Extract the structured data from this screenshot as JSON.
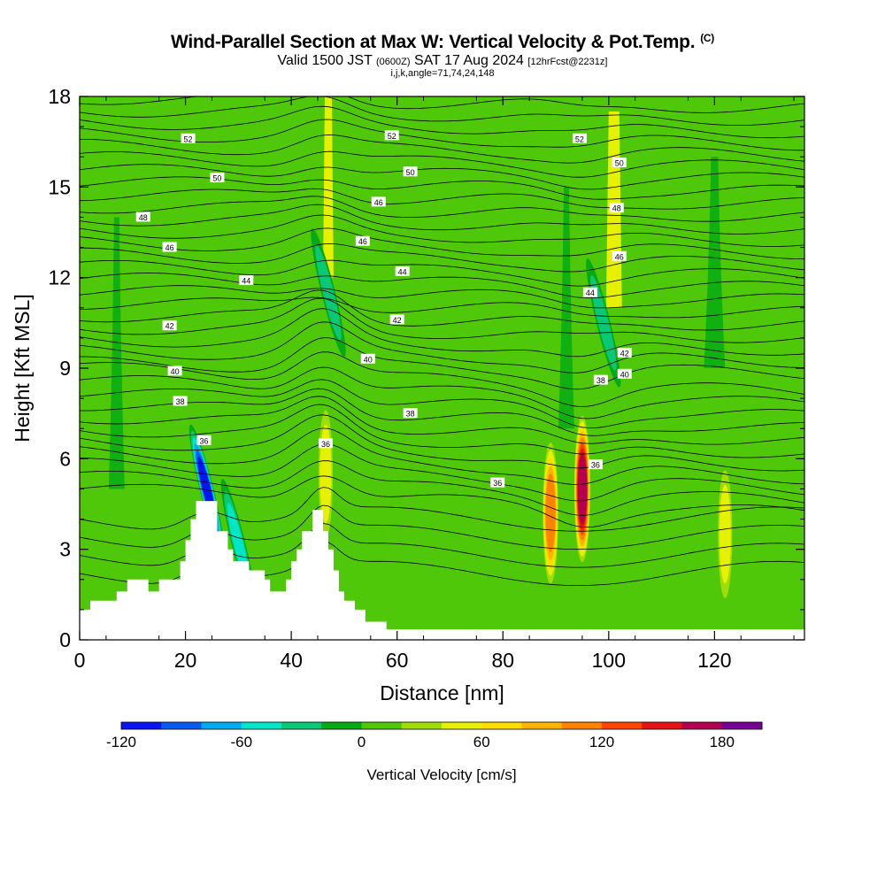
{
  "title": {
    "main": "Wind-Parallel Section at Max W: Vertical Velocity & Pot.Temp.",
    "copyright": "(C)",
    "valid_prefix": "Valid 1500 JST",
    "valid_utc": "(0600Z)",
    "valid_date": "SAT 17 Aug 2024",
    "forecast": "[12hrFcst@2231z]",
    "params": "i,j,k,angle=71,74,24,148"
  },
  "chart_data": {
    "type": "heatmap",
    "xlabel": "Distance [nm]",
    "ylabel": "Height [Kft MSL]",
    "xlim": [
      0,
      137
    ],
    "ylim": [
      0,
      18
    ],
    "x_ticks": [
      "0",
      "20",
      "40",
      "60",
      "80",
      "100",
      "120"
    ],
    "y_ticks": [
      "0",
      "3",
      "6",
      "9",
      "12",
      "15",
      "18"
    ],
    "background_w": 0,
    "colorbar": {
      "label": "Vertical Velocity [cm/s]",
      "ticks": [
        "-120",
        "-60",
        "0",
        "60",
        "120",
        "180"
      ],
      "range": [
        -120,
        200
      ],
      "colors": [
        "#0a14f0",
        "#0a5af0",
        "#00aaf0",
        "#00e6c8",
        "#0ac878",
        "#05aa14",
        "#50c80a",
        "#a0dc0a",
        "#e6f000",
        "#ffdc00",
        "#ffb400",
        "#ff8200",
        "#ff4600",
        "#e61414",
        "#b40050",
        "#780096"
      ]
    },
    "terrain_profile": [
      [
        0,
        1
      ],
      [
        2,
        1
      ],
      [
        2,
        1.3
      ],
      [
        7,
        1.3
      ],
      [
        7,
        1.6
      ],
      [
        9,
        1.6
      ],
      [
        9,
        2
      ],
      [
        13,
        2
      ],
      [
        13,
        1.6
      ],
      [
        15,
        1.6
      ],
      [
        15,
        2
      ],
      [
        19,
        2
      ],
      [
        19,
        2.6
      ],
      [
        20,
        2.6
      ],
      [
        20,
        3.3
      ],
      [
        21,
        3.3
      ],
      [
        21,
        4
      ],
      [
        22,
        4
      ],
      [
        22,
        4.6
      ],
      [
        26,
        4.6
      ],
      [
        26,
        3.6
      ],
      [
        28,
        3.6
      ],
      [
        28,
        3
      ],
      [
        29,
        3
      ],
      [
        29,
        2.6
      ],
      [
        32,
        2.6
      ],
      [
        32,
        2.3
      ],
      [
        35,
        2.3
      ],
      [
        35,
        2
      ],
      [
        36,
        2
      ],
      [
        36,
        1.6
      ],
      [
        39,
        1.6
      ],
      [
        39,
        2
      ],
      [
        40,
        2
      ],
      [
        40,
        2.6
      ],
      [
        41,
        2.6
      ],
      [
        41,
        3
      ],
      [
        42,
        3
      ],
      [
        42,
        3.6
      ],
      [
        44,
        3.6
      ],
      [
        44,
        4.3
      ],
      [
        46,
        4.3
      ],
      [
        46,
        3.6
      ],
      [
        47,
        3.6
      ],
      [
        47,
        3
      ],
      [
        48,
        3
      ],
      [
        48,
        2.3
      ],
      [
        49,
        2.3
      ],
      [
        49,
        1.6
      ],
      [
        50,
        1.6
      ],
      [
        50,
        1.3
      ],
      [
        52,
        1.3
      ],
      [
        52,
        1
      ],
      [
        54,
        1
      ],
      [
        54,
        0.6
      ],
      [
        58,
        0.6
      ],
      [
        58,
        0.35
      ],
      [
        137,
        0.35
      ]
    ],
    "w_features": [
      {
        "x": 95,
        "z": 5.0,
        "w": 190
      },
      {
        "x": 89,
        "z": 4.2,
        "w": 130
      },
      {
        "x": 46.5,
        "z": 5.5,
        "w": 75
      },
      {
        "x": 122,
        "z": 3.5,
        "w": 70
      },
      {
        "x": 24,
        "z": 5.0,
        "w": -120
      },
      {
        "x": 30,
        "z": 3.2,
        "w": -60
      },
      {
        "x": 47,
        "z": 11.5,
        "w": -45
      },
      {
        "x": 99,
        "z": 10.5,
        "w": -45
      }
    ],
    "theta_labels": [
      {
        "text": "52",
        "x": 20.5,
        "z": 16.6
      },
      {
        "text": "52",
        "x": 59,
        "z": 16.7
      },
      {
        "text": "52",
        "x": 94.5,
        "z": 16.6
      },
      {
        "text": "50",
        "x": 26,
        "z": 15.3
      },
      {
        "text": "50",
        "x": 62.5,
        "z": 15.5
      },
      {
        "text": "50",
        "x": 102,
        "z": 15.8
      },
      {
        "text": "48",
        "x": 12,
        "z": 14.0
      },
      {
        "text": "48",
        "x": 101.5,
        "z": 14.3
      },
      {
        "text": "46",
        "x": 17,
        "z": 13.0
      },
      {
        "text": "46",
        "x": 56.5,
        "z": 14.5
      },
      {
        "text": "46",
        "x": 53.5,
        "z": 13.2
      },
      {
        "text": "46",
        "x": 102,
        "z": 12.7
      },
      {
        "text": "44",
        "x": 31.5,
        "z": 11.9
      },
      {
        "text": "44",
        "x": 61,
        "z": 12.2
      },
      {
        "text": "44",
        "x": 96.5,
        "z": 11.5
      },
      {
        "text": "42",
        "x": 17,
        "z": 10.4
      },
      {
        "text": "42",
        "x": 60,
        "z": 10.6
      },
      {
        "text": "42",
        "x": 103,
        "z": 9.5
      },
      {
        "text": "40",
        "x": 18,
        "z": 8.9
      },
      {
        "text": "40",
        "x": 54.5,
        "z": 9.3
      },
      {
        "text": "40",
        "x": 103,
        "z": 8.8
      },
      {
        "text": "38",
        "x": 19,
        "z": 7.9
      },
      {
        "text": "38",
        "x": 62.5,
        "z": 7.5
      },
      {
        "text": "38",
        "x": 98.5,
        "z": 8.6
      },
      {
        "text": "36",
        "x": 23.5,
        "z": 6.6
      },
      {
        "text": "36",
        "x": 46.5,
        "z": 6.5
      },
      {
        "text": "36",
        "x": 79,
        "z": 5.2
      },
      {
        "text": "36",
        "x": 97.5,
        "z": 5.8
      }
    ]
  }
}
